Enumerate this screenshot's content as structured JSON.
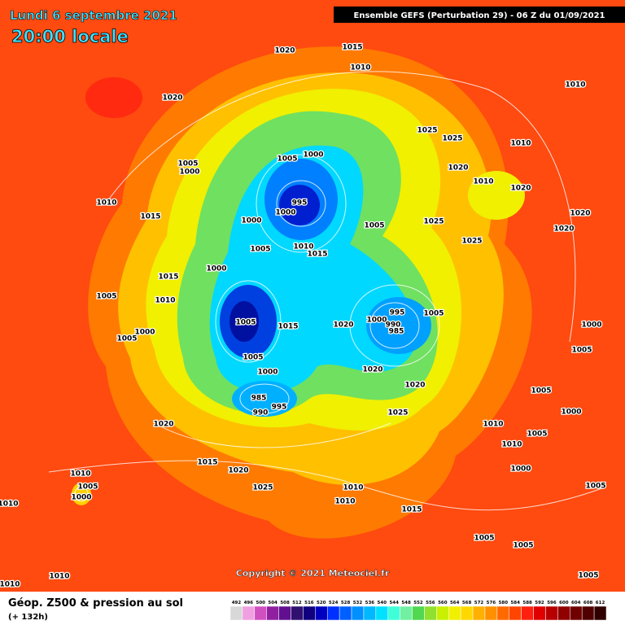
{
  "header": {
    "date": "Lundi 6 septembre 2021",
    "time": "20:00 locale",
    "model": "Ensemble GEFS  (Perturbation 29)  -  06 Z du 01/09/2021"
  },
  "pressure_labels": [
    "1020",
    "1015",
    "1010",
    "1010",
    "1020",
    "1025",
    "1025",
    "1010",
    "1020",
    "1010",
    "1020",
    "1005",
    "1000",
    "1005",
    "1000",
    "995",
    "1000",
    "1010",
    "1015",
    "1000",
    "1005",
    "1025",
    "1020",
    "1020",
    "1025",
    "1005",
    "1010",
    "1015",
    "1000",
    "1015",
    "1005",
    "1010",
    "995",
    "1005",
    "1000",
    "990",
    "985",
    "1005",
    "1015",
    "1020",
    "1000",
    "1005",
    "1000",
    "1005",
    "1005",
    "1020",
    "1000",
    "1020",
    "985",
    "995",
    "990",
    "1025",
    "1005",
    "1000",
    "1020",
    "1010",
    "1010",
    "1005",
    "1015",
    "1020",
    "1000",
    "1010",
    "1005",
    "1000",
    "1025",
    "1010",
    "1010",
    "1005",
    "1010",
    "1015",
    "1005",
    "1005",
    "1010",
    "1005",
    "1010"
  ],
  "copyright": "Copyright © 2021 Meteociel.fr",
  "legend": {
    "title": "Géop. Z500 & pression au sol",
    "subtitle": "(+ 132h)",
    "scale": [
      492,
      496,
      500,
      504,
      508,
      512,
      516,
      520,
      524,
      528,
      532,
      536,
      540,
      544,
      548,
      552,
      556,
      560,
      564,
      568,
      572,
      576,
      580,
      584,
      588,
      592,
      596,
      600,
      604,
      608,
      612
    ],
    "colors": [
      "#d8d8d8",
      "#f0a0e0",
      "#d050c0",
      "#9020a0",
      "#601090",
      "#301070",
      "#100080",
      "#0000c0",
      "#0030ff",
      "#0060ff",
      "#0090ff",
      "#00b8ff",
      "#00e0ff",
      "#40ffd8",
      "#70f0a0",
      "#50d850",
      "#90e030",
      "#c8f000",
      "#f0f000",
      "#ffd800",
      "#ffb000",
      "#ff9000",
      "#ff6a00",
      "#ff4500",
      "#ff2010",
      "#e00000",
      "#b80000",
      "#900000",
      "#700000",
      "#500000",
      "#300000"
    ]
  }
}
